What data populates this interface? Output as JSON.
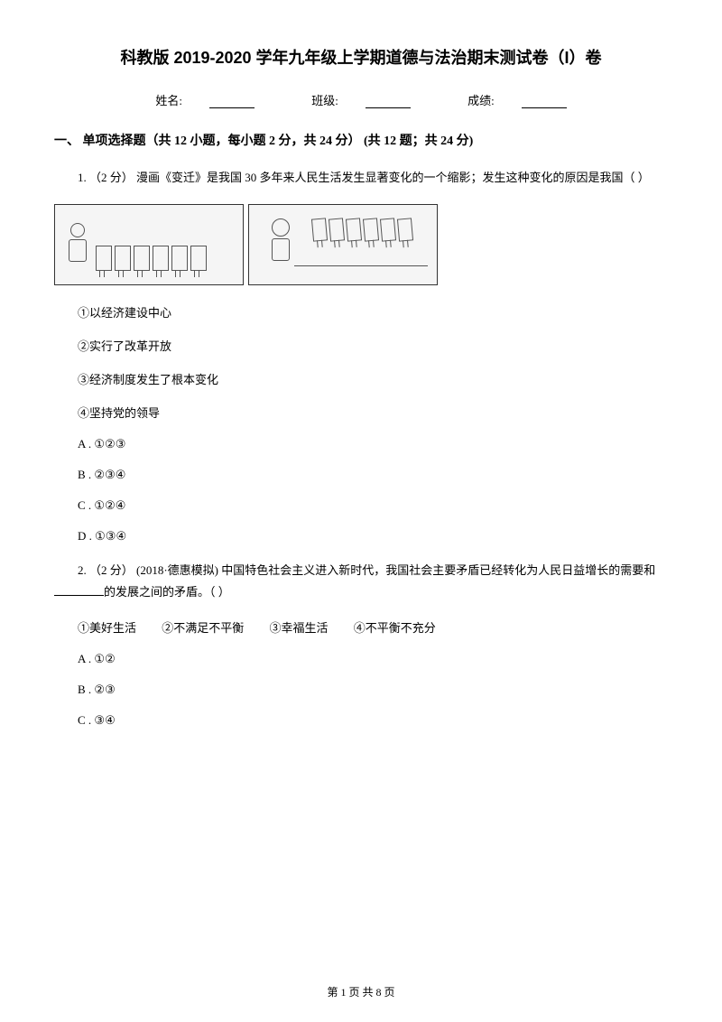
{
  "title": "科教版 2019-2020 学年九年级上学期道德与法治期末测试卷（I）卷",
  "info": {
    "name_label": "姓名:",
    "class_label": "班级:",
    "score_label": "成绩:"
  },
  "section": {
    "header": "一、 单项选择题（共 12 小题，每小题 2 分，共 24 分） (共 12 题；共 24 分)"
  },
  "q1": {
    "text": "1.  （2 分）  漫画《变迁》是我国 30 多年来人民生活发生显著变化的一个缩影；发生这种变化的原因是我国（    ）",
    "opt1": "①以经济建设中心",
    "opt2": "②实行了改革开放",
    "opt3": "③经济制度发生了根本变化",
    "opt4": "④坚持党的领导",
    "choiceA": "A . ①②③",
    "choiceB": "B . ②③④",
    "choiceC": "C . ①②④",
    "choiceD": "D . ①③④"
  },
  "q2": {
    "text_prefix": "2.  （2 分）  (2018·德惠模拟)  中国特色社会主义进入新时代，我国社会主要矛盾已经转化为人民日益增长的需要和",
    "text_suffix": "的发展之间的矛盾。（     ）",
    "inline_opt1": "①美好生活",
    "inline_opt2": "②不满足不平衡",
    "inline_opt3": "③幸福生活",
    "inline_opt4": "④不平衡不充分",
    "choiceA": "A . ①②",
    "choiceB": "B . ②③",
    "choiceC": "C . ③④"
  },
  "footer": {
    "text": "第 1 页 共 8 页"
  },
  "image": {
    "box_count_1": 6,
    "box_count_2": 6
  }
}
